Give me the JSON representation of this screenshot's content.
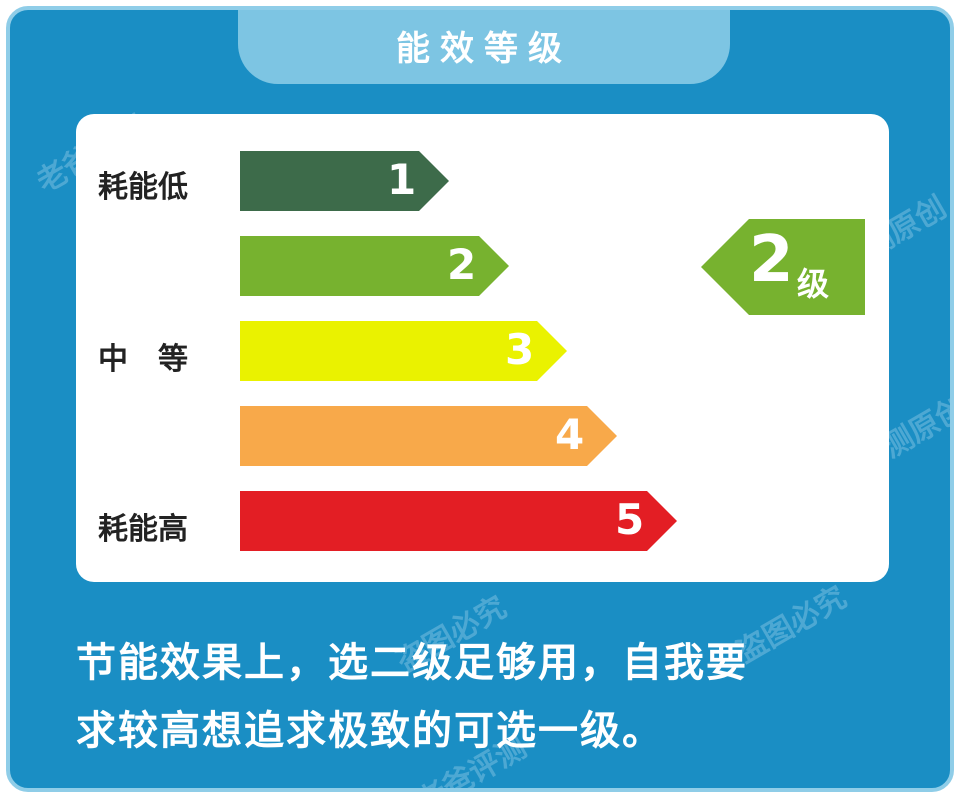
{
  "title": "能效等级",
  "watermark": "老爸评测原创 盗图必究",
  "labels": {
    "low": "耗能低",
    "mid": "中　等",
    "high": "耗能高"
  },
  "levels": [
    {
      "num": "1",
      "color": "#3d6b4a"
    },
    {
      "num": "2",
      "color": "#77b22f"
    },
    {
      "num": "3",
      "color": "#eaf200"
    },
    {
      "num": "4",
      "color": "#f8a94a"
    },
    {
      "num": "5",
      "color": "#e31e24"
    }
  ],
  "badge": {
    "num": "2",
    "unit": "级",
    "color": "#77b22f"
  },
  "text": {
    "line1": "节能效果上，选二级足够用，自我要",
    "line2": "求较高想追求极致的可选一级。"
  }
}
